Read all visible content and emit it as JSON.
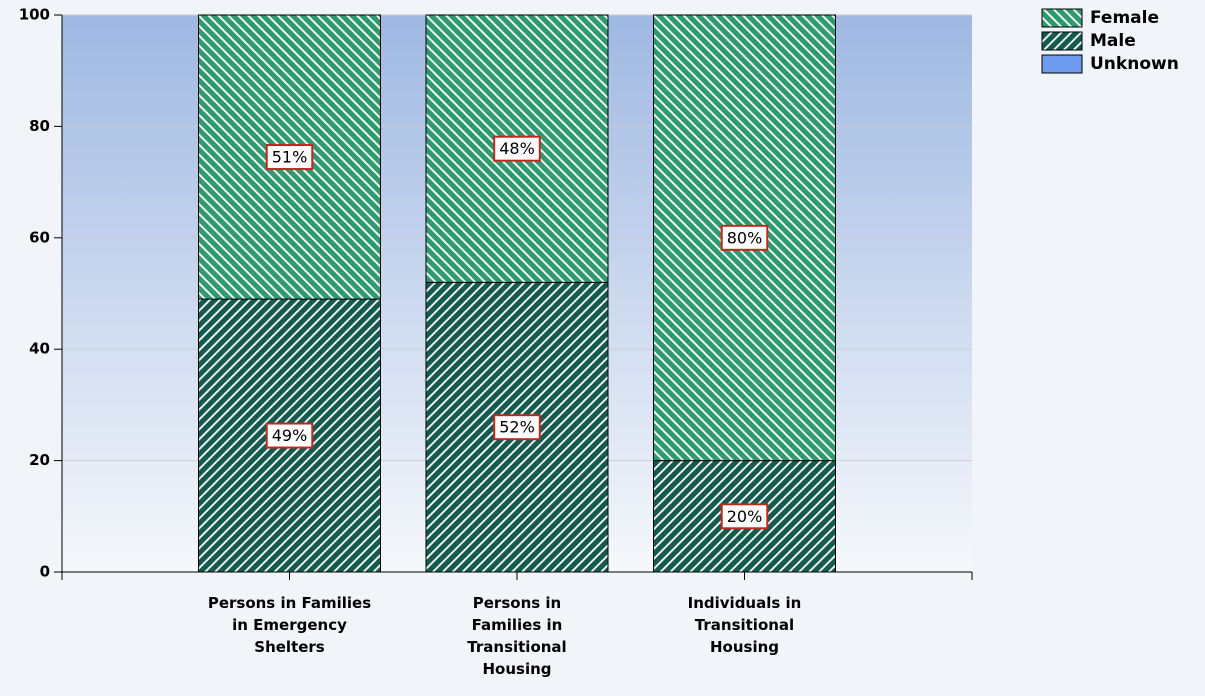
{
  "chart_data": {
    "type": "stacked_bar",
    "categories": [
      "Persons in Families\nin Emergency\nShelters",
      "Persons in\nFamilies in\nTransitional\nHousing",
      "Individuals in\nTransitional\nHousing"
    ],
    "series": [
      {
        "name": "Female",
        "color": "#2f9a70",
        "values": [
          51,
          48,
          80
        ],
        "value_labels": [
          "51%",
          "48%",
          "80%"
        ]
      },
      {
        "name": "Male",
        "color": "#145a4e",
        "values": [
          49,
          52,
          20
        ],
        "value_labels": [
          "49%",
          "52%",
          "20%"
        ]
      },
      {
        "name": "Unknown",
        "color": "#6e9bf0",
        "values": [
          0,
          0,
          0
        ]
      }
    ],
    "ylim": [
      0,
      100
    ],
    "yticks": [
      0,
      20,
      40,
      60,
      80,
      100
    ],
    "grid": true,
    "legend": "top-right"
  }
}
